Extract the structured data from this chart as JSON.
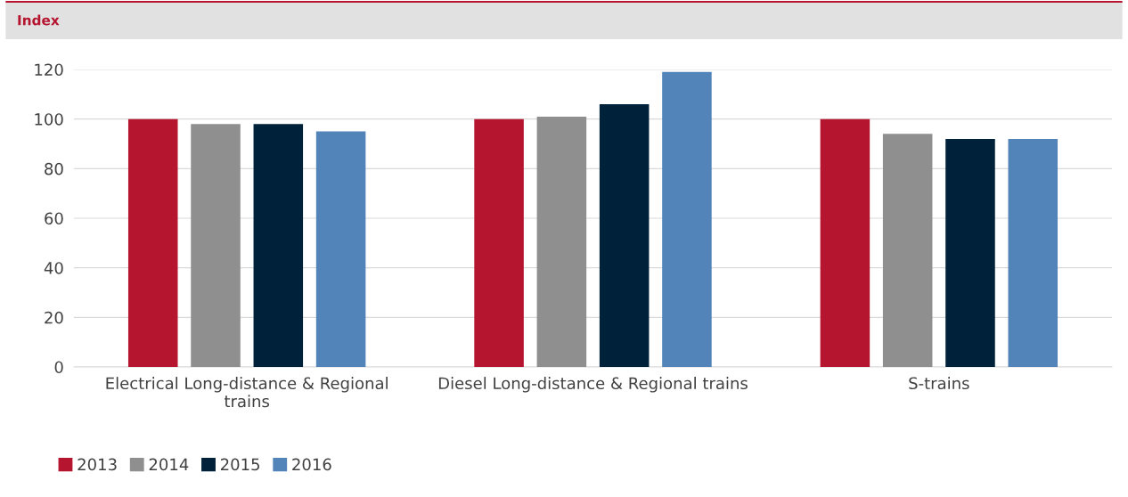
{
  "chart_data": {
    "type": "bar",
    "title": "Index",
    "categories": [
      "Electrical Long-distance & Regional\ntrains",
      "Diesel Long-distance & Regional trains",
      "S-trains"
    ],
    "series": [
      {
        "name": "2013",
        "color": "#b5152f",
        "values": [
          100,
          100,
          100
        ]
      },
      {
        "name": "2014",
        "color": "#8f8f8f",
        "values": [
          98,
          101,
          94
        ]
      },
      {
        "name": "2015",
        "color": "#00213a",
        "values": [
          98,
          106,
          92
        ]
      },
      {
        "name": "2016",
        "color": "#5384b9",
        "values": [
          95,
          119,
          92
        ]
      }
    ],
    "ylim": [
      0,
      120
    ],
    "yticks": [
      0,
      20,
      40,
      60,
      80,
      100,
      120
    ],
    "grid": "y",
    "legend": "bottom left"
  }
}
